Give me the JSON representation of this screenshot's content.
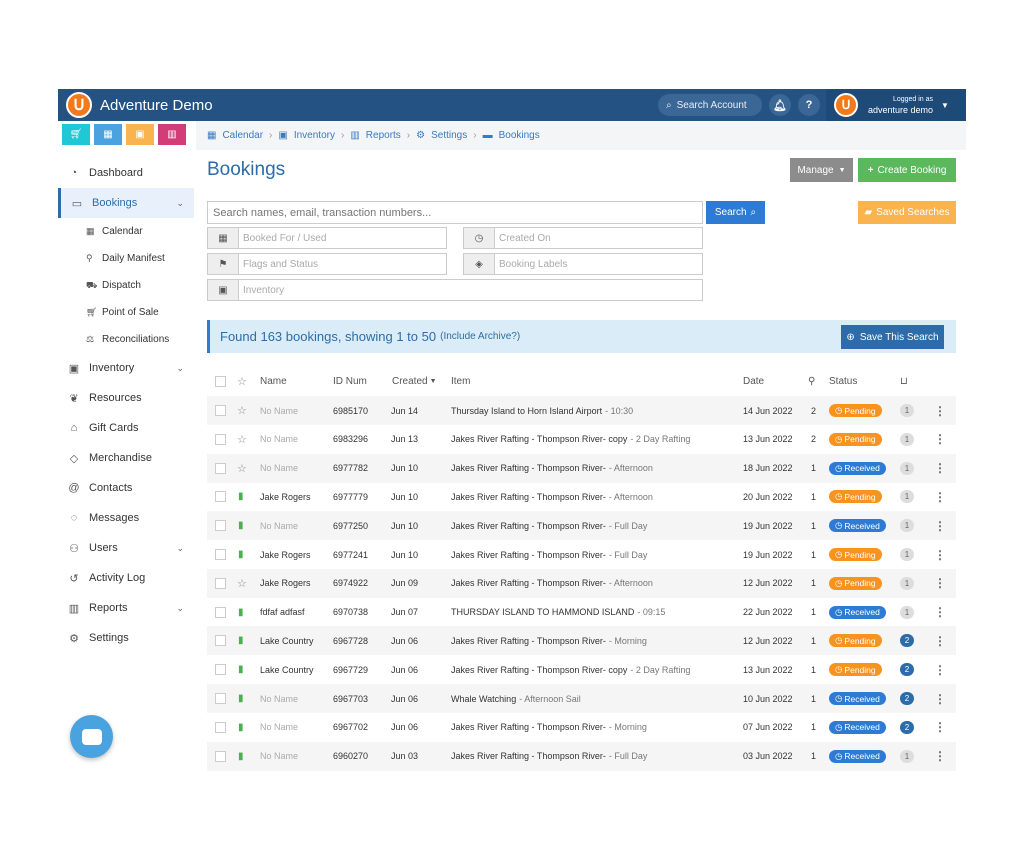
{
  "header": {
    "app_title": "Adventure Demo",
    "search_account": "Search Account",
    "logged_in_as": "Logged in as",
    "user_name": "adventure demo",
    "help": "?"
  },
  "colors": {
    "header": "#245383",
    "accent": "#2f7bd4",
    "pending": "#f7931e",
    "create": "#5cb85c",
    "saved": "#f9b34f",
    "quick_cart": "#1fc8d4",
    "quick_calendar": "#4aa3df",
    "quick_briefcase": "#f9b34f",
    "quick_chart": "#d23c77"
  },
  "quick_buttons": [
    {
      "icon": "cart-icon"
    },
    {
      "icon": "calendar-icon"
    },
    {
      "icon": "briefcase-icon"
    },
    {
      "icon": "chart-icon"
    }
  ],
  "breadcrumbs": [
    "Calendar",
    "Inventory",
    "Reports",
    "Settings",
    "Bookings"
  ],
  "sidebar": {
    "items": [
      {
        "label": "Dashboard",
        "icon": "dashboard-icon"
      },
      {
        "label": "Bookings",
        "icon": "ticket-icon"
      }
    ],
    "subitems": [
      {
        "label": "Calendar",
        "icon": "calendar-icon"
      },
      {
        "label": "Daily Manifest",
        "icon": "person-icon"
      },
      {
        "label": "Dispatch",
        "icon": "car-icon"
      },
      {
        "label": "Point of Sale",
        "icon": "cart-icon"
      },
      {
        "label": "Reconciliations",
        "icon": "scales-icon"
      }
    ],
    "items2": [
      {
        "label": "Inventory",
        "icon": "briefcase-icon"
      },
      {
        "label": "Resources",
        "icon": "leaf-icon"
      },
      {
        "label": "Gift Cards",
        "icon": "gift-icon"
      },
      {
        "label": "Merchandise",
        "icon": "tag-icon"
      },
      {
        "label": "Contacts",
        "icon": "at-icon"
      },
      {
        "label": "Messages",
        "icon": "chat-icon"
      },
      {
        "label": "Users",
        "icon": "users-icon"
      },
      {
        "label": "Activity Log",
        "icon": "history-icon"
      },
      {
        "label": "Reports",
        "icon": "chart-icon"
      },
      {
        "label": "Settings",
        "icon": "gears-icon"
      }
    ]
  },
  "page": {
    "title": "Bookings",
    "manage": "Manage",
    "create": "Create Booking"
  },
  "search": {
    "placeholder": "Search names, email, transaction numbers...",
    "button": "Search",
    "saved": "Saved Searches"
  },
  "filters": {
    "booked_for": "Booked For / Used",
    "created_on": "Created On",
    "flags": "Flags and Status",
    "labels": "Booking Labels",
    "inventory": "Inventory"
  },
  "summary": {
    "text": "Found 163 bookings, showing 1 to 50",
    "archive": "(Include Archive?)",
    "save": "Save This Search"
  },
  "columns": {
    "name": "Name",
    "id": "ID Num",
    "created": "Created",
    "item": "Item",
    "date": "Date",
    "status": "Status"
  },
  "rows": [
    {
      "flag": "star",
      "name": "No Name",
      "id": "6985170",
      "created": "Jun 14",
      "item": "Thursday Island to Horn Island Airport",
      "sub": "- 10:30",
      "date": "14 Jun 2022",
      "qty": "2",
      "status": "Pending",
      "cnt": "1"
    },
    {
      "flag": "star",
      "name": "No Name",
      "id": "6983296",
      "created": "Jun 13",
      "item": "Jakes River Rafting - Thompson River- copy",
      "sub": "- 2 Day Rafting",
      "date": "13 Jun 2022",
      "qty": "2",
      "status": "Pending",
      "cnt": "1"
    },
    {
      "flag": "star",
      "name": "No Name",
      "id": "6977782",
      "created": "Jun 10",
      "item": "Jakes River Rafting - Thompson River-",
      "sub": "- Afternoon",
      "date": "18 Jun 2022",
      "qty": "1",
      "status": "Received",
      "cnt": "1"
    },
    {
      "flag": "bookmark",
      "name": "Jake Rogers",
      "id": "6977779",
      "created": "Jun 10",
      "item": "Jakes River Rafting - Thompson River-",
      "sub": "- Afternoon",
      "date": "20 Jun 2022",
      "qty": "1",
      "status": "Pending",
      "cnt": "1"
    },
    {
      "flag": "bookmark",
      "name": "No Name",
      "id": "6977250",
      "created": "Jun 10",
      "item": "Jakes River Rafting - Thompson River-",
      "sub": "- Full Day",
      "date": "19 Jun 2022",
      "qty": "1",
      "status": "Received",
      "cnt": "1"
    },
    {
      "flag": "bookmark",
      "name": "Jake Rogers",
      "id": "6977241",
      "created": "Jun 10",
      "item": "Jakes River Rafting - Thompson River-",
      "sub": "- Full Day",
      "date": "19 Jun 2022",
      "qty": "1",
      "status": "Pending",
      "cnt": "1"
    },
    {
      "flag": "star",
      "name": "Jake Rogers",
      "id": "6974922",
      "created": "Jun 09",
      "item": "Jakes River Rafting - Thompson River-",
      "sub": "- Afternoon",
      "date": "12 Jun 2022",
      "qty": "1",
      "status": "Pending",
      "cnt": "1"
    },
    {
      "flag": "bookmark",
      "name": "fdfaf adfasf",
      "id": "6970738",
      "created": "Jun 07",
      "item": "THURSDAY ISLAND TO HAMMOND ISLAND",
      "sub": "- 09:15",
      "date": "22 Jun 2022",
      "qty": "1",
      "status": "Received",
      "cnt": "1"
    },
    {
      "flag": "bookmark",
      "name": "Lake Country",
      "id": "6967728",
      "created": "Jun 06",
      "item": "Jakes River Rafting - Thompson River-",
      "sub": "- Morning",
      "date": "12 Jun 2022",
      "qty": "1",
      "status": "Pending",
      "cnt": "2"
    },
    {
      "flag": "bookmark",
      "name": "Lake Country",
      "id": "6967729",
      "created": "Jun 06",
      "item": "Jakes River Rafting - Thompson River- copy",
      "sub": "- 2 Day Rafting",
      "date": "13 Jun 2022",
      "qty": "1",
      "status": "Pending",
      "cnt": "2"
    },
    {
      "flag": "bookmark",
      "name": "No Name",
      "id": "6967703",
      "created": "Jun 06",
      "item": "Whale Watching",
      "sub": "- Afternoon Sail",
      "date": "10 Jun 2022",
      "qty": "1",
      "status": "Received",
      "cnt": "2"
    },
    {
      "flag": "bookmark",
      "name": "No Name",
      "id": "6967702",
      "created": "Jun 06",
      "item": "Jakes River Rafting - Thompson River-",
      "sub": "- Morning",
      "date": "07 Jun 2022",
      "qty": "1",
      "status": "Received",
      "cnt": "2"
    },
    {
      "flag": "bookmark",
      "name": "No Name",
      "id": "6960270",
      "created": "Jun 03",
      "item": "Jakes River Rafting - Thompson River-",
      "sub": "- Full Day",
      "date": "03 Jun 2022",
      "qty": "1",
      "status": "Received",
      "cnt": "1"
    }
  ]
}
